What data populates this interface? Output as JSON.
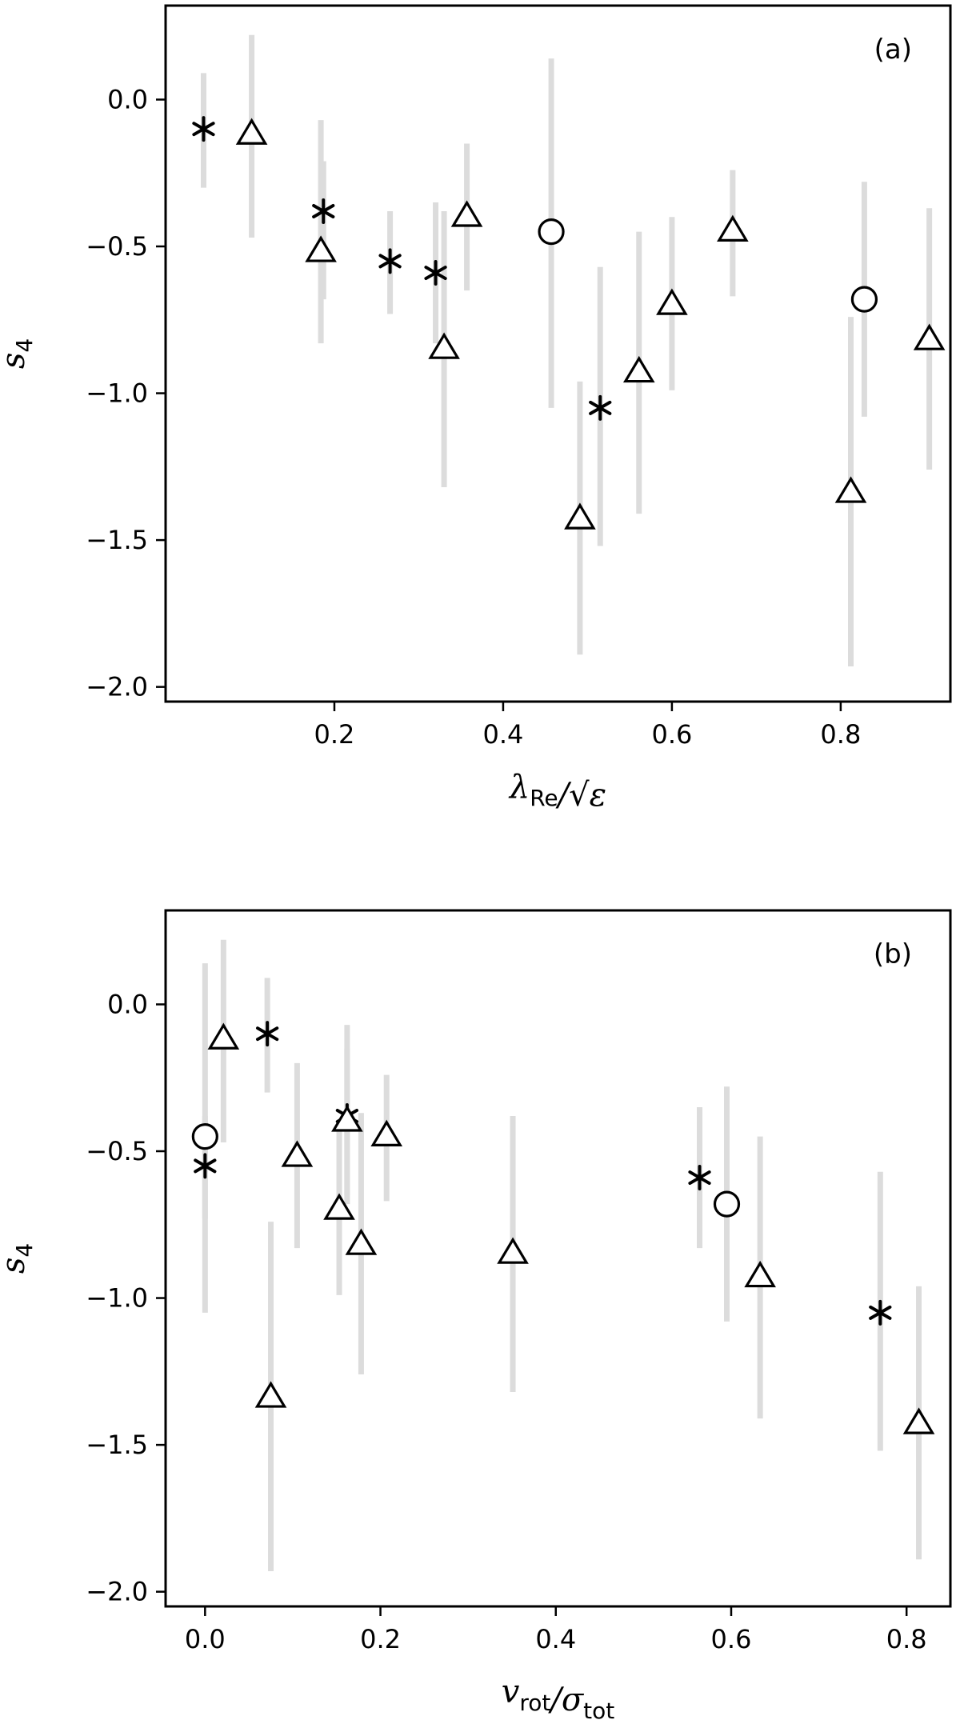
{
  "chart_data": [
    {
      "type": "scatter",
      "panel_label": "(a)",
      "xlabel": "λ_Re/√ε",
      "ylabel": "s4",
      "xlim": [
        0.0,
        0.93
      ],
      "ylim": [
        -2.05,
        0.32
      ],
      "xticks": [
        0.2,
        0.4,
        0.6,
        0.8
      ],
      "xtick_labels": [
        "0.2",
        "0.4",
        "0.6",
        "0.8"
      ],
      "yticks": [
        0.0,
        -0.5,
        -1.0,
        -1.5,
        -2.0
      ],
      "ytick_labels": [
        "0.0",
        "−0.5",
        "−1.0",
        "−1.5",
        "−2.0"
      ],
      "errorbar_color": "#dcdcdc",
      "marker_color": "#000000",
      "series": [
        {
          "marker": "star",
          "points": [
            {
              "x": 0.045,
              "y": -0.1,
              "ylo": -0.3,
              "yhi": 0.09
            },
            {
              "x": 0.187,
              "y": -0.38,
              "ylo": -0.68,
              "yhi": -0.21
            },
            {
              "x": 0.266,
              "y": -0.55,
              "ylo": -0.73,
              "yhi": -0.38
            },
            {
              "x": 0.32,
              "y": -0.59,
              "ylo": -0.83,
              "yhi": -0.35
            },
            {
              "x": 0.515,
              "y": -1.05,
              "ylo": -1.52,
              "yhi": -0.57
            }
          ]
        },
        {
          "marker": "triangle",
          "points": [
            {
              "x": 0.102,
              "y": -0.12,
              "ylo": -0.47,
              "yhi": 0.22
            },
            {
              "x": 0.184,
              "y": -0.52,
              "ylo": -0.83,
              "yhi": -0.07
            },
            {
              "x": 0.33,
              "y": -0.85,
              "ylo": -1.32,
              "yhi": -0.38
            },
            {
              "x": 0.357,
              "y": -0.4,
              "ylo": -0.65,
              "yhi": -0.15
            },
            {
              "x": 0.491,
              "y": -1.43,
              "ylo": -1.89,
              "yhi": -0.96
            },
            {
              "x": 0.561,
              "y": -0.93,
              "ylo": -1.41,
              "yhi": -0.45
            },
            {
              "x": 0.6,
              "y": -0.7,
              "ylo": -0.99,
              "yhi": -0.4
            },
            {
              "x": 0.672,
              "y": -0.45,
              "ylo": -0.67,
              "yhi": -0.24
            },
            {
              "x": 0.812,
              "y": -1.34,
              "ylo": -1.93,
              "yhi": -0.74
            },
            {
              "x": 0.905,
              "y": -0.82,
              "ylo": -1.26,
              "yhi": -0.37
            }
          ]
        },
        {
          "marker": "circle",
          "points": [
            {
              "x": 0.457,
              "y": -0.45,
              "ylo": -1.05,
              "yhi": 0.14
            },
            {
              "x": 0.828,
              "y": -0.68,
              "ylo": -1.08,
              "yhi": -0.28
            }
          ]
        }
      ]
    },
    {
      "type": "scatter",
      "panel_label": "(b)",
      "xlabel": "v_rot/σ_tot",
      "ylabel": "s4",
      "xlim": [
        -0.045,
        0.85
      ],
      "ylim": [
        -2.05,
        0.32
      ],
      "xticks": [
        0.0,
        0.2,
        0.4,
        0.6,
        0.8
      ],
      "xtick_labels": [
        "0.0",
        "0.2",
        "0.4",
        "0.6",
        "0.8"
      ],
      "yticks": [
        0.0,
        -0.5,
        -1.0,
        -1.5,
        -2.0
      ],
      "ytick_labels": [
        "0.0",
        "−0.5",
        "−1.0",
        "−1.5",
        "−2.0"
      ],
      "errorbar_color": "#dcdcdc",
      "marker_color": "#000000",
      "series": [
        {
          "marker": "star",
          "points": [
            {
              "x": 0.0,
              "y": -0.55,
              "ylo": -0.73,
              "yhi": -0.38
            },
            {
              "x": 0.071,
              "y": -0.1,
              "ylo": -0.3,
              "yhi": 0.09
            },
            {
              "x": 0.162,
              "y": -0.38,
              "ylo": -0.68,
              "yhi": -0.07
            },
            {
              "x": 0.564,
              "y": -0.59,
              "ylo": -0.83,
              "yhi": -0.35
            },
            {
              "x": 0.77,
              "y": -1.05,
              "ylo": -1.52,
              "yhi": -0.57
            }
          ]
        },
        {
          "marker": "triangle",
          "points": [
            {
              "x": 0.021,
              "y": -0.12,
              "ylo": -0.47,
              "yhi": 0.22
            },
            {
              "x": 0.075,
              "y": -1.34,
              "ylo": -1.93,
              "yhi": -0.74
            },
            {
              "x": 0.105,
              "y": -0.52,
              "ylo": -0.83,
              "yhi": -0.2
            },
            {
              "x": 0.153,
              "y": -0.7,
              "ylo": -0.99,
              "yhi": -0.4
            },
            {
              "x": 0.162,
              "y": -0.4,
              "ylo": -0.65,
              "yhi": -0.15
            },
            {
              "x": 0.178,
              "y": -0.82,
              "ylo": -1.26,
              "yhi": -0.37
            },
            {
              "x": 0.207,
              "y": -0.45,
              "ylo": -0.67,
              "yhi": -0.24
            },
            {
              "x": 0.351,
              "y": -0.85,
              "ylo": -1.32,
              "yhi": -0.38
            },
            {
              "x": 0.633,
              "y": -0.93,
              "ylo": -1.41,
              "yhi": -0.45
            },
            {
              "x": 0.814,
              "y": -1.43,
              "ylo": -1.89,
              "yhi": -0.96
            }
          ]
        },
        {
          "marker": "circle",
          "points": [
            {
              "x": 0.0,
              "y": -0.45,
              "ylo": -1.05,
              "yhi": 0.14
            },
            {
              "x": 0.595,
              "y": -0.68,
              "ylo": -1.08,
              "yhi": -0.28
            }
          ]
        }
      ]
    }
  ]
}
